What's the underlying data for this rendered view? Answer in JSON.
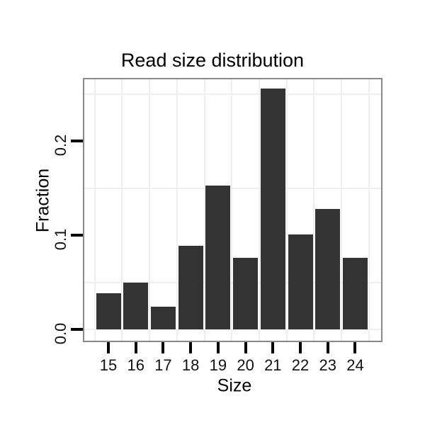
{
  "chart_data": {
    "type": "bar",
    "title": "Read size distribution",
    "xlabel": "Size",
    "ylabel": "Fraction",
    "categories": [
      "15",
      "16",
      "17",
      "18",
      "19",
      "20",
      "21",
      "22",
      "23",
      "24"
    ],
    "values": [
      0.038,
      0.05,
      0.024,
      0.089,
      0.153,
      0.076,
      0.256,
      0.101,
      0.128,
      0.076
    ],
    "ylim": [
      0,
      0.268
    ],
    "y_major_ticks": [
      0.0,
      0.1,
      0.2
    ],
    "y_tick_labels": [
      "0.0",
      "0.1",
      "0.2"
    ],
    "y_minor_gridlines": [
      0.05,
      0.15,
      0.25
    ],
    "grid": "minor-only",
    "legend": "none",
    "colors": {
      "bar": "#333333",
      "panel_border": "#898989",
      "gridline": "#efefef",
      "background": "#ffffff",
      "tick": "#000000",
      "text": "#111111"
    }
  }
}
